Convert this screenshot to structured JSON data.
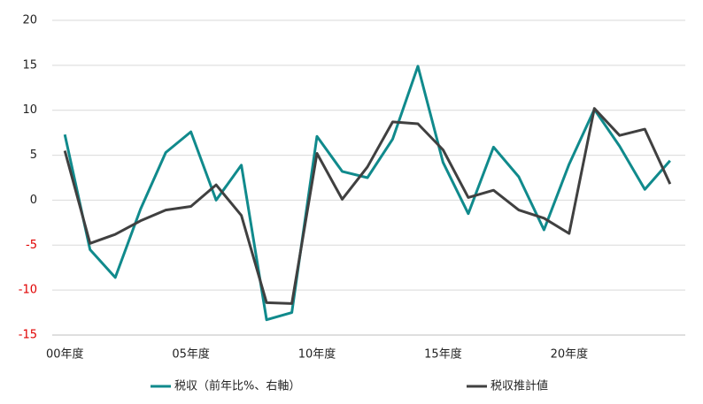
{
  "chart_data": {
    "type": "line",
    "categories": [
      "00年度",
      null,
      null,
      null,
      null,
      "05年度",
      null,
      null,
      null,
      null,
      "10年度",
      null,
      null,
      null,
      null,
      "15年度",
      null,
      null,
      null,
      null,
      "20年度",
      null,
      null,
      null,
      null
    ],
    "series": [
      {
        "name": "税収（前年比%、右軸）",
        "color": "#108a8c",
        "values": [
          7.3,
          -5.5,
          -8.6,
          -1,
          5.3,
          7.6,
          0,
          3.9,
          -13.3,
          -12.5,
          7.1,
          3.2,
          2.5,
          6.8,
          14.9,
          4.2,
          -1.5,
          5.9,
          2.6,
          -3.3,
          4,
          10.1,
          6,
          1.2,
          4.4
        ]
      },
      {
        "name": "税収推計値",
        "color": "#404040",
        "values": [
          5.5,
          -4.8,
          -3.8,
          -2.3,
          -1.1,
          -0.7,
          1.7,
          -1.7,
          -11.4,
          -11.5,
          5.2,
          0.1,
          3.7,
          8.7,
          8.5,
          5.6,
          0.3,
          1.1,
          -1.1,
          -2,
          -3.7,
          10.2,
          7.2,
          7.9,
          1.8
        ]
      }
    ],
    "ylim": [
      -15,
      20
    ],
    "yticks": [
      20,
      15,
      10,
      5,
      0,
      -5,
      -10,
      -15
    ],
    "grid": true,
    "negative_tick_color": "#e00000",
    "legend": "bottom"
  }
}
